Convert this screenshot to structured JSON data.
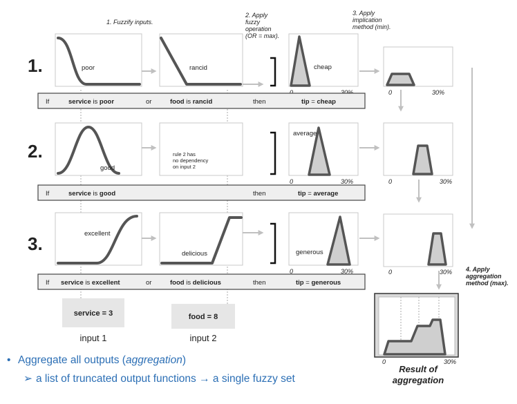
{
  "steps": {
    "s1": "1. Fuzzify inputs.",
    "s2": [
      "2. Apply",
      "fuzzy",
      "operation",
      "(OR = max)."
    ],
    "s3": [
      "3. Apply",
      "implication",
      "method (min)."
    ],
    "s4": [
      "4. Apply",
      "aggregation",
      "method (max)."
    ]
  },
  "rows": [
    {
      "number": "1.",
      "input1_label": "poor",
      "input2_label": "rancid",
      "output_label": "cheap",
      "rule": {
        "if": "If",
        "a_var": "service",
        "is1": "is",
        "a_val": "poor",
        "op": "or",
        "b_var": "food",
        "is2": "is",
        "b_val": "rancid",
        "then": "then",
        "c_var": "tip",
        "eq": "=",
        "c_val": "cheap"
      }
    },
    {
      "number": "2.",
      "input1_label": "good",
      "input2_note": [
        "rule 2 has",
        "no dependency",
        "on input 2"
      ],
      "output_label": "average",
      "rule": {
        "if": "If",
        "a_var": "service",
        "is1": "is",
        "a_val": "good",
        "then": "then",
        "c_var": "tip",
        "eq": "=",
        "c_val": "average"
      }
    },
    {
      "number": "3.",
      "input1_label": "excellent",
      "input2_label": "delicious",
      "output_label": "generous",
      "rule": {
        "if": "If",
        "a_var": "service",
        "is1": "is",
        "a_val": "excellent",
        "op": "or",
        "b_var": "food",
        "is2": "is",
        "b_val": "delicious",
        "then": "then",
        "c_var": "tip",
        "eq": "=",
        "c_val": "generous"
      }
    }
  ],
  "axis": {
    "min": "0",
    "max": "30%"
  },
  "inputs": [
    {
      "value": "service = 3",
      "name": "input 1"
    },
    {
      "value": "food = 8",
      "name": "input 2"
    }
  ],
  "result": [
    "Result of",
    "aggregation"
  ],
  "bullets": {
    "b1_prefix": "Aggregate all outputs (",
    "b1_italic": "aggregation",
    "b1_suffix": ")",
    "b2_left": "a list of truncated output functions",
    "b2_right": "a single fuzzy set"
  }
}
